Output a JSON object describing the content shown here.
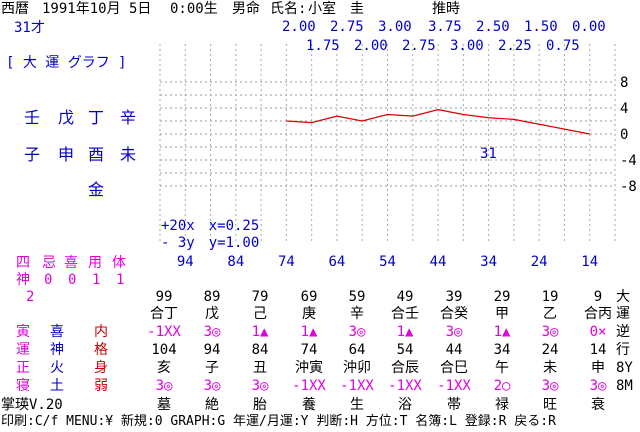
{
  "header": {
    "calendar": "西暦",
    "date": "1991年10月 5日",
    "time": "0:00生",
    "sex": "男命",
    "name_label": "氏名:",
    "name": "小室　圭",
    "inferred": "推時",
    "age": "31才"
  },
  "left": {
    "graph_title": "[ 大 運 グラフ ]",
    "stems": [
      "壬",
      "戊",
      "丁",
      "辛"
    ],
    "branches": [
      "子",
      "申",
      "酉",
      "未"
    ],
    "element": "金",
    "info": {
      "labels": [
        "四",
        "忌",
        "喜",
        "用",
        "体"
      ],
      "label_row2": "神",
      "values": [
        "0",
        "0",
        "1",
        "1"
      ],
      "num": "2"
    }
  },
  "chart_data": {
    "type": "line",
    "title": "",
    "xlabel": "",
    "ylabel": "",
    "x_ticks": [
      94,
      84,
      74,
      64,
      54,
      44,
      34,
      24,
      14
    ],
    "y_ticks": [
      8,
      4,
      0,
      -4,
      -8
    ],
    "ylim": [
      -8,
      8
    ],
    "series_top_values": [
      "2.00",
      "2.75",
      "3.00",
      "3.75",
      "2.50",
      "1.50",
      "0.00"
    ],
    "series_bottom_values": [
      "1.75",
      "2.00",
      "2.75",
      "3.00",
      "2.25",
      "0.75"
    ],
    "x": [
      74,
      69,
      64,
      59,
      54,
      49,
      44,
      39,
      34,
      29,
      24,
      19,
      14
    ],
    "y": [
      2.0,
      1.75,
      2.75,
      2.0,
      3.0,
      2.75,
      3.75,
      3.0,
      2.5,
      2.25,
      1.5,
      0.75,
      0.0
    ],
    "marker_label": "31",
    "legend_scale_x": "+20x　x=0.25",
    "legend_scale_y": "- 3y　y=1.00",
    "grid": true,
    "line_color": "#dd0000"
  },
  "table": {
    "row_labels": [
      "寅",
      "運",
      "正",
      "寝"
    ],
    "row_labels2": [
      "喜",
      "神",
      "火",
      "土"
    ],
    "row_labels3": [
      "内",
      "格",
      "身",
      "弱"
    ],
    "ages_top": [
      "99",
      "89",
      "79",
      "69",
      "59",
      "49",
      "39",
      "29",
      "19",
      "9"
    ],
    "top_label": "大",
    "stems": [
      "合丁",
      "戊",
      "己",
      "庚",
      "辛",
      "合壬",
      "合癸",
      "甲",
      "乙",
      "合丙"
    ],
    "stems_right": "運",
    "marks1": [
      "-1XX",
      "3◎",
      "1▲",
      "1▲",
      "3◎",
      "1▲",
      "3◎",
      "1▲",
      "3◎",
      "0×"
    ],
    "marks1_right": "逆",
    "ages_bottom": [
      "104",
      "94",
      "84",
      "74",
      "64",
      "54",
      "44",
      "34",
      "24",
      "14"
    ],
    "ages_bottom_right": "行",
    "branches": [
      "亥",
      "子",
      "丑",
      "沖寅",
      "沖卯",
      "合辰",
      "合巳",
      "午",
      "未",
      "申"
    ],
    "branches_right": "8Y",
    "marks2": [
      "3◎",
      "3◎",
      "3◎",
      "-1XX",
      "-1XX",
      "-1XX",
      "-1XX",
      "2○",
      "3◎",
      "3◎"
    ],
    "marks2_right": "8M",
    "stages": [
      "墓",
      "絶",
      "胎",
      "養",
      "生",
      "浴",
      "帯",
      "禄",
      "旺",
      "衰"
    ]
  },
  "footer": {
    "version": "掌瑛V.20",
    "menu": "印刷:C/f MENU:¥ 新規:0 GRAPH:G 年運/月運:Y 判断:H 方位:T 名簿:L 登録:R 戻る:R"
  }
}
